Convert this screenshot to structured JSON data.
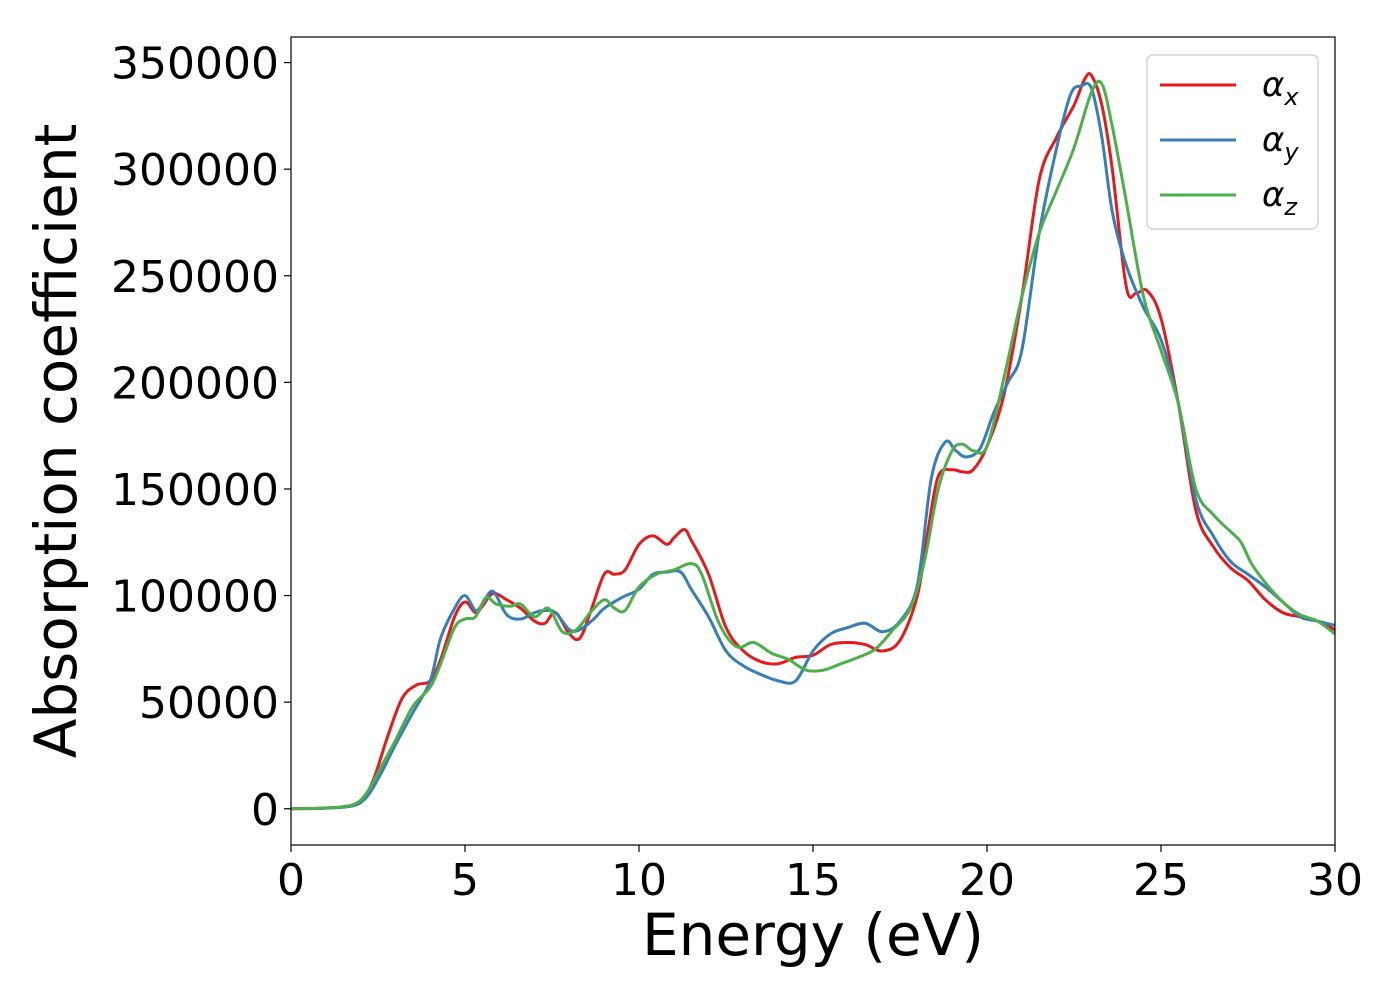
{
  "chart_data": {
    "type": "line",
    "title": "",
    "xlabel": "Energy (eV)",
    "ylabel": "Absorption coefficient",
    "xlim": [
      0,
      30
    ],
    "ylim": [
      -17000,
      362000
    ],
    "xticks": [
      0,
      5,
      10,
      15,
      20,
      25,
      30
    ],
    "yticks": [
      0,
      50000,
      100000,
      150000,
      200000,
      250000,
      300000,
      350000
    ],
    "grid": false,
    "legend_position": "top-right",
    "series": [
      {
        "name": "αx",
        "label_base": "α",
        "label_sub": "x",
        "color": "#e41a1c",
        "x": [
          0,
          1,
          1.8,
          2.1,
          2.4,
          2.8,
          3.2,
          3.6,
          4.0,
          4.3,
          4.7,
          5.0,
          5.3,
          5.5,
          5.8,
          6.2,
          6.6,
          7.0,
          7.3,
          7.6,
          8.0,
          8.3,
          8.6,
          9.0,
          9.3,
          9.6,
          10.0,
          10.4,
          10.8,
          11.0,
          11.3,
          11.5,
          12.0,
          12.5,
          13.0,
          13.5,
          14.0,
          14.5,
          15.0,
          15.5,
          16.0,
          16.5,
          17.0,
          17.5,
          18.0,
          18.3,
          18.6,
          19.0,
          19.3,
          19.6,
          20.0,
          20.5,
          21.0,
          21.5,
          22.0,
          22.5,
          22.8,
          23.0,
          23.3,
          23.6,
          24.0,
          24.3,
          24.6,
          25.0,
          25.5,
          26.0,
          26.5,
          27.0,
          27.5,
          28.0,
          28.5,
          29.0,
          29.5,
          30.0
        ],
        "y": [
          0,
          300,
          1500,
          5000,
          15000,
          35000,
          52000,
          58000,
          60000,
          70000,
          90000,
          97000,
          92000,
          95000,
          101000,
          98000,
          94000,
          88000,
          87000,
          92000,
          82000,
          80000,
          92000,
          110000,
          110000,
          112000,
          124000,
          128000,
          124000,
          127000,
          131000,
          126000,
          110000,
          85000,
          74000,
          69000,
          68000,
          71000,
          72000,
          77000,
          78000,
          77000,
          74000,
          79000,
          100000,
          130000,
          156000,
          159000,
          158000,
          159000,
          170000,
          195000,
          240000,
          295000,
          315000,
          330000,
          342000,
          344000,
          330000,
          300000,
          245000,
          242000,
          243000,
          230000,
          190000,
          140000,
          123000,
          113000,
          107000,
          98000,
          92000,
          90000,
          88000,
          84000
        ]
      },
      {
        "name": "αy",
        "label_base": "α",
        "label_sub": "y",
        "color": "#377eb8",
        "x": [
          0,
          1,
          1.8,
          2.2,
          2.6,
          3.0,
          3.5,
          4.0,
          4.3,
          4.7,
          5.0,
          5.3,
          5.5,
          5.8,
          6.2,
          6.6,
          7.0,
          7.3,
          7.6,
          8.0,
          8.3,
          8.7,
          9.0,
          9.5,
          10.0,
          10.4,
          10.8,
          11.2,
          11.5,
          12.0,
          12.5,
          13.0,
          13.5,
          14.0,
          14.5,
          15.0,
          15.5,
          16.0,
          16.5,
          17.0,
          17.5,
          18.0,
          18.4,
          18.8,
          19.1,
          19.4,
          19.8,
          20.2,
          20.6,
          21.0,
          21.5,
          22.0,
          22.4,
          22.7,
          23.0,
          23.3,
          23.6,
          24.0,
          24.5,
          25.0,
          25.5,
          26.0,
          26.5,
          27.0,
          27.5,
          28.0,
          28.5,
          29.0,
          29.5,
          30.0
        ],
        "y": [
          0,
          300,
          1500,
          6000,
          17000,
          30000,
          45000,
          60000,
          80000,
          94000,
          100000,
          93000,
          96000,
          102000,
          91000,
          89000,
          92000,
          93000,
          92000,
          84000,
          84000,
          89000,
          94000,
          99000,
          103000,
          110000,
          111000,
          111000,
          103000,
          90000,
          74000,
          67000,
          63000,
          60000,
          60000,
          74000,
          82000,
          85000,
          87000,
          83000,
          88000,
          105000,
          155000,
          172000,
          168000,
          165000,
          169000,
          186000,
          200000,
          215000,
          270000,
          310000,
          335000,
          339000,
          338000,
          315000,
          280000,
          255000,
          235000,
          220000,
          190000,
          145000,
          128000,
          116000,
          110000,
          104000,
          97000,
          90000,
          88000,
          86000
        ]
      },
      {
        "name": "αz",
        "label_base": "α",
        "label_sub": "z",
        "color": "#4daf4a",
        "x": [
          0,
          1,
          1.8,
          2.2,
          2.6,
          3.0,
          3.5,
          4.0,
          4.3,
          4.7,
          5.0,
          5.3,
          5.6,
          5.9,
          6.3,
          6.6,
          7.0,
          7.4,
          7.8,
          8.2,
          8.6,
          9.0,
          9.3,
          9.6,
          10.0,
          10.5,
          11.0,
          11.5,
          11.8,
          12.3,
          12.8,
          13.3,
          13.8,
          14.3,
          14.8,
          15.3,
          15.8,
          16.3,
          16.8,
          17.3,
          17.8,
          18.2,
          18.6,
          19.0,
          19.3,
          19.6,
          20.0,
          20.5,
          21.0,
          21.5,
          22.0,
          22.5,
          23.0,
          23.3,
          23.6,
          24.0,
          24.5,
          25.0,
          25.5,
          26.0,
          26.5,
          27.0,
          27.3,
          27.6,
          28.0,
          28.5,
          29.0,
          29.5,
          30.0
        ],
        "y": [
          0,
          400,
          2000,
          8000,
          20000,
          32000,
          48000,
          57000,
          68000,
          85000,
          89000,
          90000,
          99000,
          96000,
          95000,
          96000,
          90000,
          94000,
          83000,
          84000,
          92000,
          98000,
          94000,
          93000,
          104000,
          110000,
          112000,
          115000,
          110000,
          87000,
          76000,
          78000,
          73000,
          70000,
          65000,
          65000,
          68000,
          71000,
          75000,
          84000,
          94000,
          116000,
          150000,
          168000,
          171000,
          168000,
          170000,
          203000,
          240000,
          270000,
          290000,
          310000,
          336000,
          340000,
          320000,
          285000,
          240000,
          215000,
          190000,
          150000,
          138000,
          130000,
          125000,
          115000,
          106000,
          97000,
          91000,
          88000,
          82000
        ]
      }
    ]
  }
}
